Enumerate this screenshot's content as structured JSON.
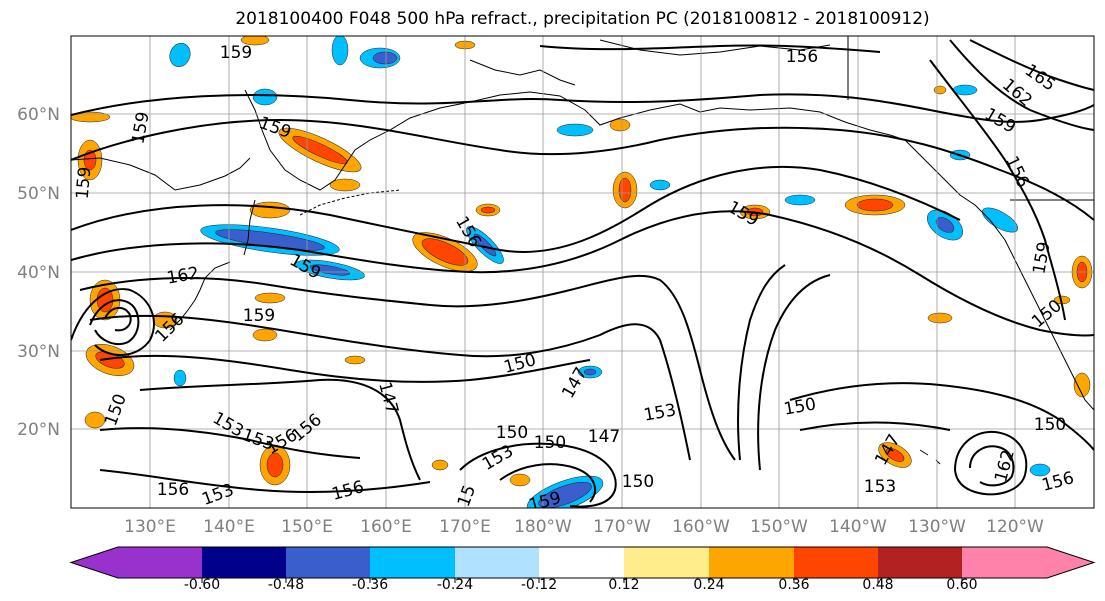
{
  "title": "2018100400 F048 500 hPa refract., precipitation PC (2018100812 - 2018100912)",
  "latitude_labels": [
    "60°N",
    "50°N",
    "40°N",
    "30°N",
    "20°N"
  ],
  "longitude_labels": [
    "130°E",
    "140°E",
    "150°E",
    "160°E",
    "170°E",
    "180°W",
    "170°W",
    "160°W",
    "150°W",
    "140°W",
    "130°W",
    "120°W"
  ],
  "contour_labels": [
    "159",
    "156",
    "165",
    "162",
    "159",
    "159",
    "159",
    "159",
    "156",
    "159",
    "159",
    "159",
    "156",
    "162",
    "150",
    "156",
    "150",
    "147",
    "150",
    "147",
    "153",
    "150",
    "156",
    "153",
    "156",
    "153",
    "153",
    "156",
    "150",
    "159",
    "147",
    "150",
    "153",
    "150",
    "147",
    "153",
    "156",
    "150",
    "162",
    "156",
    "159",
    "15"
  ],
  "colorbar": {
    "tick_labels": [
      "-0.60",
      "-0.48",
      "-0.36",
      "-0.24",
      "-0.12",
      "0.12",
      "0.24",
      "0.36",
      "0.48",
      "0.60"
    ],
    "colors": [
      "#9932cc",
      "#00008b",
      "#3a5fcd",
      "#00bfff",
      "#b0e2ff",
      "#ffffff",
      "#ffec8b",
      "#ffa500",
      "#ff4500",
      "#b22222",
      "#ff82ab"
    ]
  },
  "precip_colors": {
    "dark_blue": "#3a5fcd",
    "light_blue": "#00bfff",
    "pale_blue": "#b0e2ff",
    "yellow": "#ffec8b",
    "orange": "#ffa500",
    "red": "#ff4500"
  }
}
